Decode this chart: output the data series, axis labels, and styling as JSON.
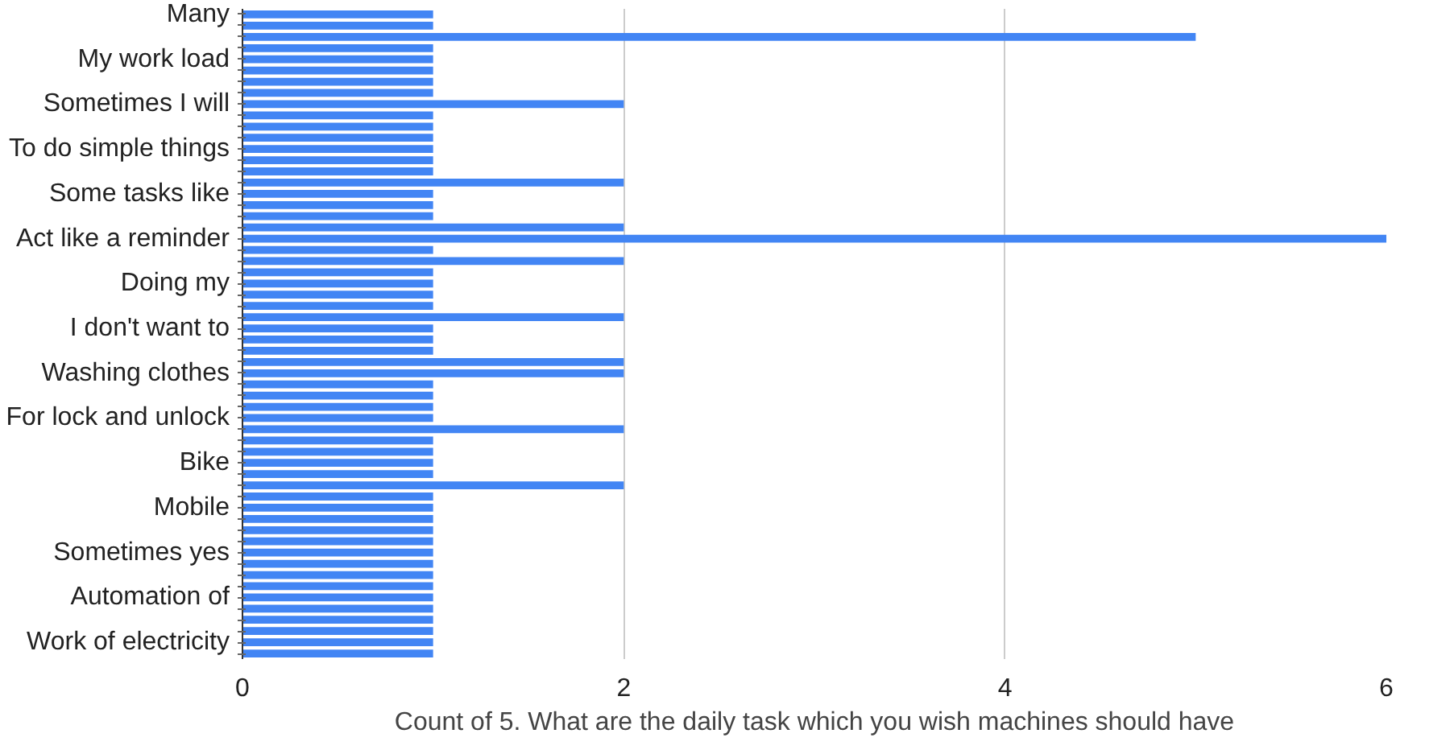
{
  "chart_data": {
    "type": "bar",
    "orientation": "horizontal",
    "xlabel": "Count of 5. What are the daily task which you wish machines should have",
    "categories": [
      "Many",
      null,
      null,
      null,
      "My work load",
      null,
      null,
      null,
      "Sometimes I will",
      null,
      null,
      null,
      "To do simple things",
      null,
      null,
      null,
      "Some tasks like",
      null,
      null,
      null,
      "Act like a reminder",
      null,
      null,
      null,
      "Doing my",
      null,
      null,
      null,
      "I don't want to",
      null,
      null,
      null,
      "Washing clothes",
      null,
      null,
      null,
      "For lock and unlock",
      null,
      null,
      null,
      "Bike",
      null,
      null,
      null,
      "Mobile",
      null,
      null,
      null,
      "Sometimes yes",
      null,
      null,
      null,
      "Automation of",
      null,
      null,
      null,
      "Work of electricity",
      null
    ],
    "values": [
      1,
      1,
      5,
      1,
      1,
      1,
      1,
      1,
      2,
      1,
      1,
      1,
      1,
      1,
      1,
      2,
      1,
      1,
      1,
      2,
      6,
      1,
      2,
      1,
      1,
      1,
      1,
      2,
      1,
      1,
      1,
      2,
      2,
      1,
      1,
      1,
      1,
      2,
      1,
      1,
      1,
      1,
      2,
      1,
      1,
      1,
      1,
      1,
      1,
      1,
      1,
      1,
      1,
      1,
      1,
      1,
      1,
      1
    ],
    "color": "#4285f4",
    "xlim": [
      0,
      6
    ],
    "xticks": [
      0,
      2,
      4,
      6
    ],
    "grid": "x"
  }
}
